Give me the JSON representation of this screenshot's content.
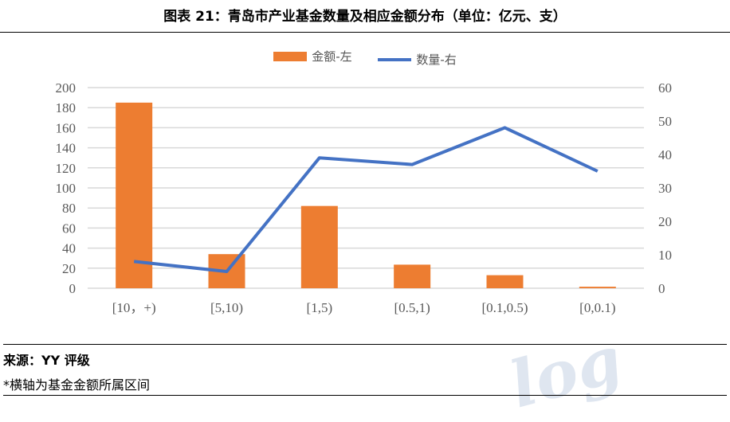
{
  "header": {
    "title": "图表 21：青岛市产业基金数量及相应金额分布（单位：亿元、支）"
  },
  "footer": {
    "source": "来源：YY 评级",
    "note": "*横轴为基金金额所属区间"
  },
  "watermark": "log",
  "chart_data": {
    "type": "bar+line",
    "categories": [
      "[10，+)",
      "[5,10)",
      "[1,5)",
      "[0.5,1)",
      "[0.1,0.5)",
      "[0,0.1)"
    ],
    "series": [
      {
        "name": "金额-左",
        "type": "bar",
        "axis": "left",
        "color": "#ED7D31",
        "values": [
          185,
          34,
          82,
          23.5,
          13,
          1.5
        ]
      },
      {
        "name": "数量-右",
        "type": "line",
        "axis": "right",
        "color": "#4472C4",
        "values": [
          8,
          5,
          39,
          37,
          48,
          35
        ]
      }
    ],
    "y_left": {
      "lim": [
        0,
        200
      ],
      "ticks": [
        0,
        20,
        40,
        60,
        80,
        100,
        120,
        140,
        160,
        180,
        200
      ]
    },
    "y_right": {
      "lim": [
        0,
        60
      ],
      "ticks": [
        0,
        10,
        20,
        30,
        40,
        50,
        60
      ]
    },
    "grid": true,
    "legend": "top"
  }
}
